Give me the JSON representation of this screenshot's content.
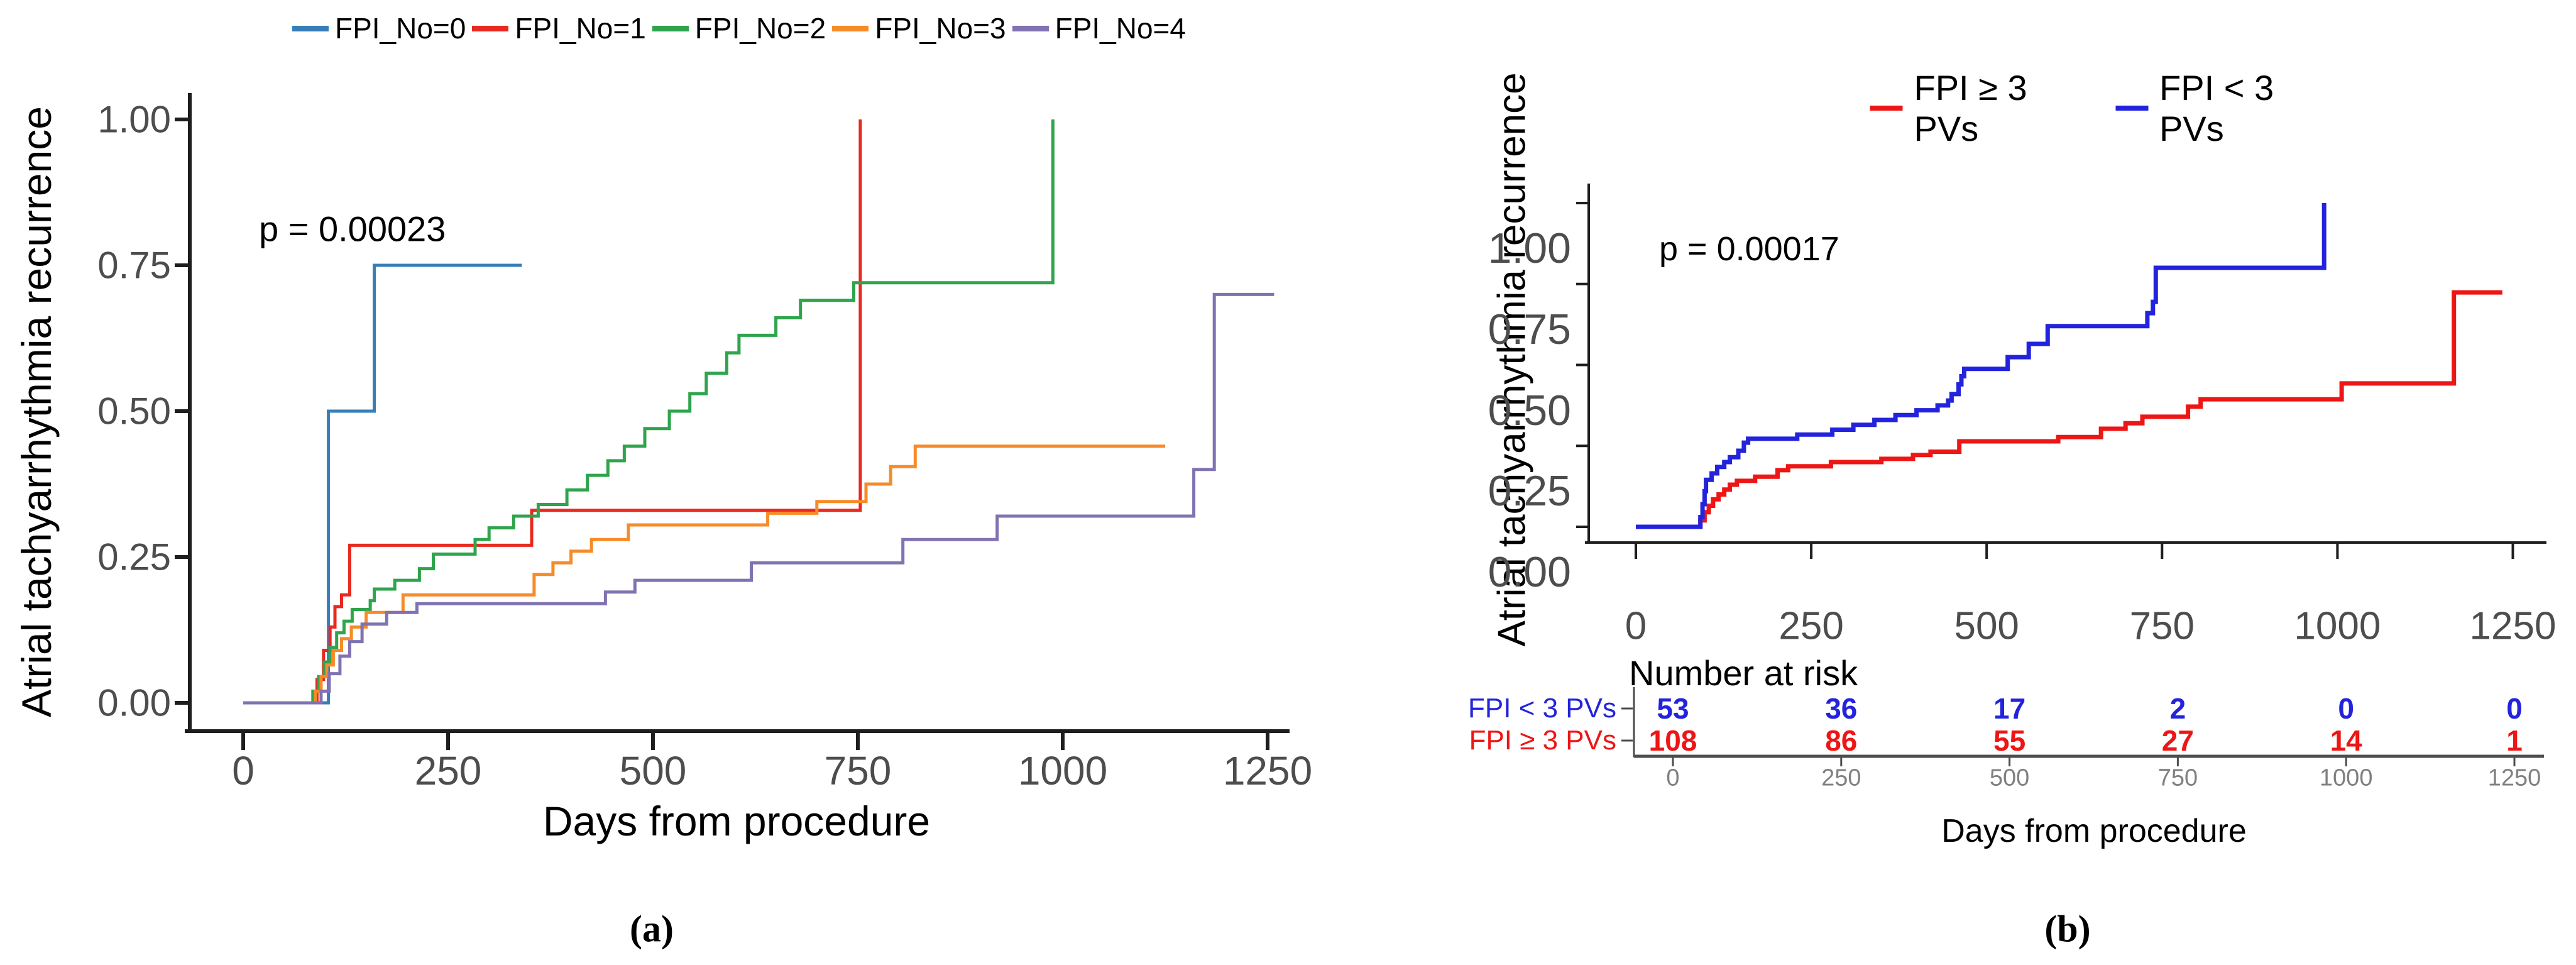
{
  "figure": {
    "caption_a": "(a)",
    "caption_b": "(b)"
  },
  "chart_data": [
    {
      "id": "a",
      "type": "line",
      "subtype": "kaplan-meier-cumulative-incidence-steps",
      "xlabel": "Days from procedure",
      "ylabel": "Atrial tachyarrhythmia recurrence",
      "p_label": "p = 0.00023",
      "xticks": [
        0,
        250,
        500,
        750,
        1000,
        1250
      ],
      "ytick_labels": [
        "1.00",
        "0.75",
        "0.50",
        "0.25",
        "0.00"
      ],
      "ytick_values": [
        1.0,
        0.75,
        0.5,
        0.25,
        0.0
      ],
      "xlim": [
        0,
        1270
      ],
      "ylim": [
        0,
        1.0
      ],
      "grid": false,
      "legend_position": "top-center",
      "series": [
        {
          "name": "FPI_No=0",
          "color": "#377EB8",
          "points": [
            [
              0,
              0
            ],
            [
              104,
              0.5
            ],
            [
              160,
              0.75
            ],
            [
              340,
              0.75
            ]
          ]
        },
        {
          "name": "FPI_No=1",
          "color": "#E8291F",
          "points": [
            [
              0,
              0
            ],
            [
              90,
              0.04
            ],
            [
              98,
              0.09
            ],
            [
              106,
              0.13
            ],
            [
              112,
              0.165
            ],
            [
              120,
              0.185
            ],
            [
              130,
              0.27
            ],
            [
              352,
              0.33
            ],
            [
              753,
              1.0
            ]
          ]
        },
        {
          "name": "FPI_No=2",
          "color": "#2FA44C",
          "points": [
            [
              0,
              0
            ],
            [
              85,
              0.02
            ],
            [
              92,
              0.045
            ],
            [
              99,
              0.07
            ],
            [
              106,
              0.095
            ],
            [
              114,
              0.12
            ],
            [
              123,
              0.14
            ],
            [
              133,
              0.16
            ],
            [
              155,
              0.175
            ],
            [
              160,
              0.195
            ],
            [
              185,
              0.21
            ],
            [
              215,
              0.23
            ],
            [
              232,
              0.255
            ],
            [
              283,
              0.28
            ],
            [
              300,
              0.3
            ],
            [
              330,
              0.32
            ],
            [
              360,
              0.34
            ],
            [
              395,
              0.365
            ],
            [
              420,
              0.39
            ],
            [
              445,
              0.415
            ],
            [
              465,
              0.44
            ],
            [
              490,
              0.47
            ],
            [
              520,
              0.5
            ],
            [
              545,
              0.53
            ],
            [
              565,
              0.565
            ],
            [
              590,
              0.6
            ],
            [
              605,
              0.63
            ],
            [
              650,
              0.66
            ],
            [
              680,
              0.69
            ],
            [
              745,
              0.72
            ],
            [
              988,
              1.0
            ]
          ]
        },
        {
          "name": "FPI_No=3",
          "color": "#F78B28",
          "points": [
            [
              0,
              0
            ],
            [
              88,
              0.02
            ],
            [
              95,
              0.045
            ],
            [
              102,
              0.065
            ],
            [
              110,
              0.09
            ],
            [
              120,
              0.11
            ],
            [
              132,
              0.13
            ],
            [
              150,
              0.155
            ],
            [
              195,
              0.185
            ],
            [
              355,
              0.22
            ],
            [
              378,
              0.24
            ],
            [
              400,
              0.26
            ],
            [
              425,
              0.28
            ],
            [
              470,
              0.305
            ],
            [
              640,
              0.325
            ],
            [
              700,
              0.345
            ],
            [
              760,
              0.375
            ],
            [
              790,
              0.405
            ],
            [
              820,
              0.44
            ],
            [
              1125,
              0.44
            ]
          ]
        },
        {
          "name": "FPI_No=4",
          "color": "#8172B2",
          "points": [
            [
              0,
              0
            ],
            [
              95,
              0.02
            ],
            [
              105,
              0.05
            ],
            [
              118,
              0.08
            ],
            [
              130,
              0.105
            ],
            [
              145,
              0.135
            ],
            [
              175,
              0.155
            ],
            [
              212,
              0.17
            ],
            [
              442,
              0.19
            ],
            [
              478,
              0.21
            ],
            [
              620,
              0.24
            ],
            [
              805,
              0.28
            ],
            [
              920,
              0.32
            ],
            [
              1160,
              0.4
            ],
            [
              1185,
              0.7
            ],
            [
              1258,
              0.7
            ]
          ]
        }
      ]
    },
    {
      "id": "b",
      "type": "line",
      "subtype": "kaplan-meier-cumulative-incidence-steps",
      "xlabel": "Days from procedure",
      "ylabel": "Atrial tachyarrhythmia recurrence",
      "p_label": "p = 0.00017",
      "xticks": [
        0,
        250,
        500,
        750,
        1000,
        1250
      ],
      "ytick_labels": [
        "1.00",
        "0.75",
        "0.50",
        "0.25",
        "0.00"
      ],
      "ytick_values": [
        1.0,
        0.75,
        0.5,
        0.25,
        0.0
      ],
      "xlim": [
        0,
        1260
      ],
      "ylim": [
        0,
        1.0
      ],
      "grid": false,
      "legend_position": "top-center",
      "series": [
        {
          "name": "FPI ≥ 3 PVs",
          "color": "#EE1515",
          "points": [
            [
              0,
              0
            ],
            [
              92,
              0.02
            ],
            [
              98,
              0.045
            ],
            [
              104,
              0.065
            ],
            [
              110,
              0.085
            ],
            [
              118,
              0.1
            ],
            [
              126,
              0.115
            ],
            [
              134,
              0.13
            ],
            [
              144,
              0.142
            ],
            [
              170,
              0.155
            ],
            [
              202,
              0.175
            ],
            [
              217,
              0.187
            ],
            [
              278,
              0.2
            ],
            [
              350,
              0.21
            ],
            [
              395,
              0.222
            ],
            [
              420,
              0.232
            ],
            [
              461,
              0.264
            ],
            [
              602,
              0.277
            ],
            [
              663,
              0.303
            ],
            [
              698,
              0.32
            ],
            [
              722,
              0.34
            ],
            [
              787,
              0.371
            ],
            [
              805,
              0.394
            ],
            [
              1006,
              0.443
            ],
            [
              1166,
              0.724
            ],
            [
              1235,
              0.724
            ]
          ]
        },
        {
          "name": "FPI < 3 PVs",
          "color": "#2323DD",
          "points": [
            [
              0,
              0
            ],
            [
              92,
              0.03
            ],
            [
              95,
              0.07
            ],
            [
              98,
              0.11
            ],
            [
              100,
              0.145
            ],
            [
              108,
              0.165
            ],
            [
              116,
              0.185
            ],
            [
              126,
              0.2
            ],
            [
              134,
              0.215
            ],
            [
              146,
              0.235
            ],
            [
              154,
              0.26
            ],
            [
              160,
              0.272
            ],
            [
              230,
              0.285
            ],
            [
              280,
              0.3
            ],
            [
              310,
              0.315
            ],
            [
              340,
              0.33
            ],
            [
              370,
              0.345
            ],
            [
              400,
              0.36
            ],
            [
              430,
              0.375
            ],
            [
              445,
              0.39
            ],
            [
              450,
              0.41
            ],
            [
              460,
              0.44
            ],
            [
              464,
              0.465
            ],
            [
              468,
              0.488
            ],
            [
              530,
              0.524
            ],
            [
              560,
              0.565
            ],
            [
              587,
              0.62
            ],
            [
              729,
              0.66
            ],
            [
              737,
              0.695
            ],
            [
              741,
              0.8
            ],
            [
              981,
              1.0
            ]
          ]
        }
      ],
      "number_at_risk": {
        "title": "Number at risk",
        "columns": [
          0,
          250,
          500,
          750,
          1000,
          1250
        ],
        "rows": [
          {
            "label": "FPI < 3 PVs",
            "color": "#2323DD",
            "values": [
              53,
              36,
              17,
              2,
              0,
              0
            ]
          },
          {
            "label": "FPI ≥ 3 PVs",
            "color": "#EE1515",
            "values": [
              108,
              86,
              55,
              27,
              14,
              1
            ]
          }
        ]
      }
    }
  ]
}
